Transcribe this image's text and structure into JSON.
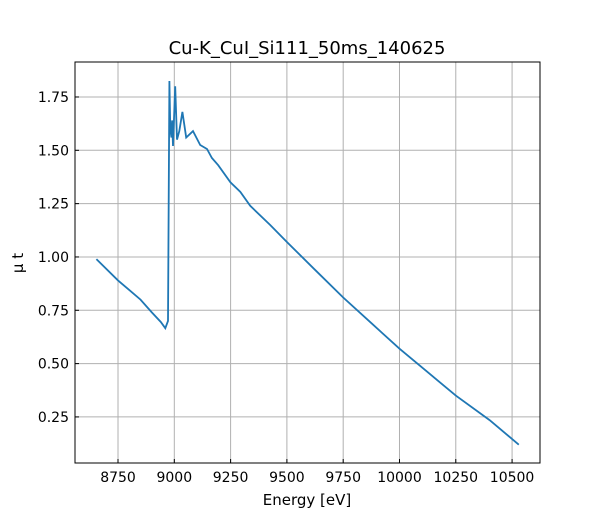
{
  "chart_data": {
    "type": "line",
    "title": "Cu-K_CuI_Si111_50ms_140625",
    "xlabel": "Energy [eV]",
    "ylabel": "μ t",
    "xlim": [
      8559,
      10624
    ],
    "ylim": [
      0.034,
      1.914
    ],
    "xticks": [
      8750,
      9000,
      9250,
      9500,
      9750,
      10000,
      10250,
      10500
    ],
    "yticks": [
      0.25,
      0.5,
      0.75,
      1.0,
      1.25,
      1.5,
      1.75
    ],
    "xtick_labels": [
      "8750",
      "9000",
      "9250",
      "9500",
      "9750",
      "10000",
      "10250",
      "10500"
    ],
    "ytick_labels": [
      "0.25",
      "0.50",
      "0.75",
      "1.00",
      "1.25",
      "1.50",
      "1.75"
    ],
    "grid": true,
    "color": "#1f77b4",
    "series": [
      {
        "x": [
          8654,
          8750,
          8850,
          8900,
          8940,
          8960,
          8972,
          8978,
          8982,
          8987,
          8990,
          8994,
          9004,
          9012,
          9022,
          9036,
          9053,
          9083,
          9115,
          9145,
          9167,
          9195,
          9249,
          9293,
          9337,
          9426,
          9500,
          9625,
          9750,
          9875,
          10000,
          10125,
          10250,
          10400,
          10530
        ],
        "y": [
          0.99,
          0.89,
          0.8,
          0.74,
          0.695,
          0.666,
          0.7,
          1.825,
          1.6,
          1.56,
          1.64,
          1.52,
          1.8,
          1.55,
          1.59,
          1.68,
          1.56,
          1.59,
          1.525,
          1.506,
          1.464,
          1.43,
          1.35,
          1.305,
          1.24,
          1.15,
          1.07,
          0.94,
          0.81,
          0.69,
          0.57,
          0.46,
          0.35,
          0.235,
          0.12
        ]
      }
    ]
  }
}
